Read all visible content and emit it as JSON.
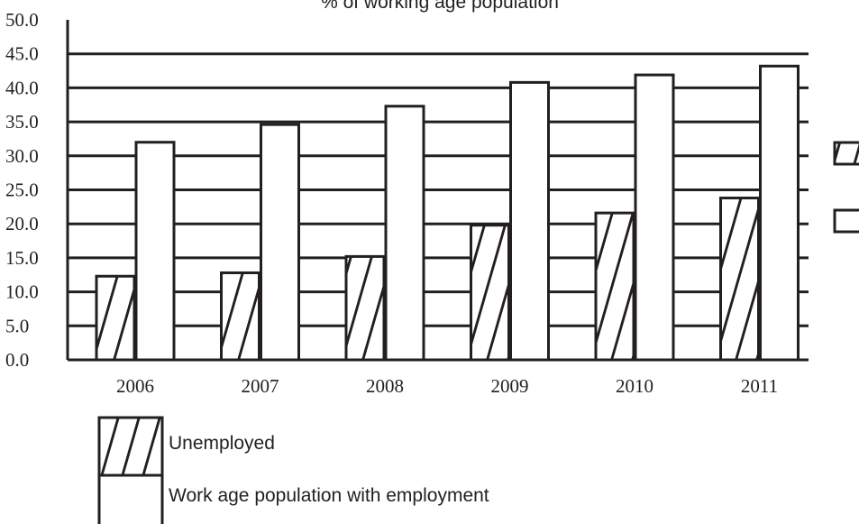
{
  "chart_data": {
    "type": "bar",
    "title": "% of working age population",
    "categories": [
      "2006",
      "2007",
      "2008",
      "2009",
      "2010",
      "2011"
    ],
    "series": [
      {
        "name": "Unemployed",
        "pattern": "hatched",
        "values": [
          12.3,
          12.8,
          15.2,
          19.8,
          21.6,
          23.8
        ]
      },
      {
        "name": "Work age population with employment",
        "pattern": "empty",
        "values": [
          32.0,
          34.6,
          37.3,
          40.8,
          41.9,
          43.2
        ]
      }
    ],
    "y_ticks": [
      "0.0",
      "5.0",
      "10.0",
      "15.0",
      "20.0",
      "25.0",
      "30.0",
      "35.0",
      "40.0",
      "45.0",
      "50.0"
    ],
    "ylim": [
      0,
      50
    ],
    "grid": true,
    "legend_placement": "bottom-left",
    "colors": {
      "ink": "#231f20",
      "fill": "#ffffff"
    }
  }
}
